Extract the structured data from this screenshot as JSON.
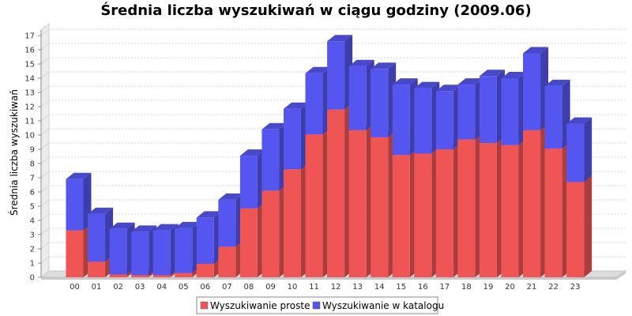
{
  "chart_data": {
    "type": "bar",
    "stacked": true,
    "three_d": true,
    "title": "Średnia liczba wyszukiwań w ciągu godziny (2009.06)",
    "xlabel": "",
    "ylabel": "Średnia liczba wyszukiwań",
    "ylim": [
      0,
      17
    ],
    "yticks": [
      "0",
      "1",
      "2",
      "3",
      "4",
      "5",
      "6",
      "7",
      "8",
      "9",
      "10",
      "11",
      "12",
      "13",
      "14",
      "15",
      "16",
      "17"
    ],
    "categories": [
      "00",
      "01",
      "02",
      "03",
      "04",
      "05",
      "06",
      "07",
      "08",
      "09",
      "10",
      "11",
      "12",
      "13",
      "14",
      "15",
      "16",
      "17",
      "18",
      "19",
      "20",
      "21",
      "22",
      "23"
    ],
    "series": [
      {
        "name": "Wyszukiwanie proste",
        "color": "#ef5555",
        "values": [
          3.3,
          1.1,
          0.2,
          0.15,
          0.15,
          0.3,
          0.95,
          2.15,
          4.85,
          6.1,
          7.6,
          10.05,
          11.8,
          10.35,
          9.85,
          8.6,
          8.7,
          9.0,
          9.7,
          9.45,
          9.3,
          10.35,
          9.05,
          6.7
        ]
      },
      {
        "name": "Wyszukiwanie w katalogu",
        "color": "#5555ef",
        "values": [
          3.6,
          3.35,
          3.2,
          3.05,
          3.15,
          3.15,
          3.25,
          3.3,
          3.7,
          4.3,
          4.25,
          4.3,
          4.8,
          4.5,
          4.8,
          4.95,
          4.6,
          4.1,
          3.85,
          4.7,
          4.7,
          5.4,
          4.4,
          4.1
        ]
      }
    ],
    "grid": true,
    "legend_position": "bottom"
  }
}
